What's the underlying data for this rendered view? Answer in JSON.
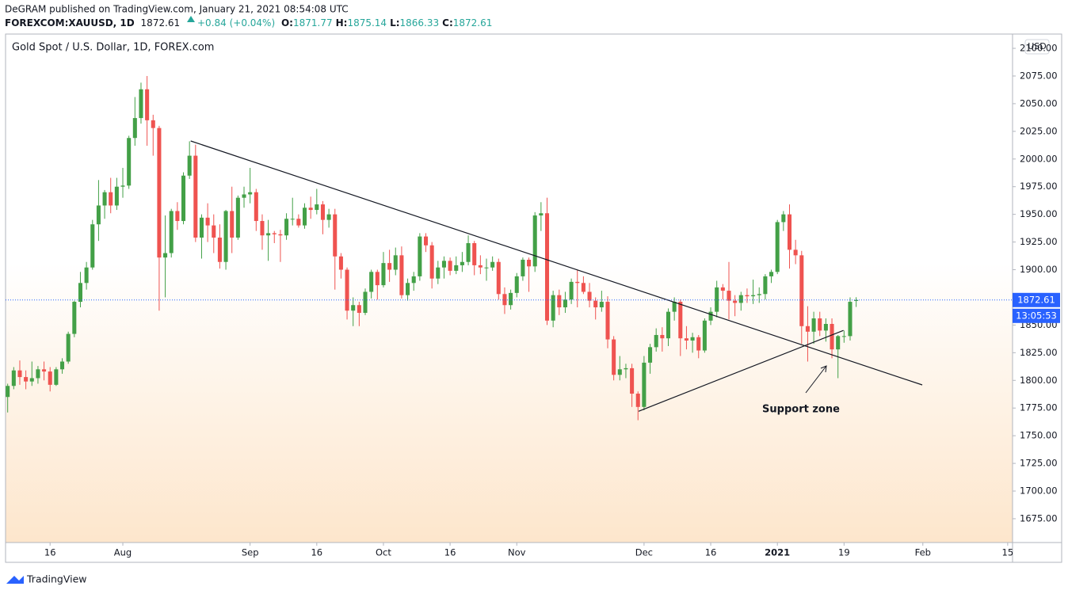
{
  "header": {
    "publisher": "DeGRAM published on TradingView.com, January 21, 2021 08:54:08 UTC",
    "symbol": "FOREXCOM:XAUUSD, 1D",
    "price": "1872.61",
    "change": "+0.84 (+0.04%)",
    "ohlc": [
      {
        "label": "O:",
        "value": "1871.77"
      },
      {
        "label": "H:",
        "value": "1875.14"
      },
      {
        "label": "L:",
        "value": "1866.33"
      },
      {
        "label": "C:",
        "value": "1872.61"
      }
    ]
  },
  "footer": {
    "brand": "TradingView"
  },
  "chart_data": {
    "type": "candlestick",
    "legend": "Gold Spot / U.S. Dollar, 1D, FOREX.com",
    "currency": "USD",
    "up_color": "#43a047",
    "down_color": "#ef5350",
    "grid": false,
    "open": [
      1785,
      1795,
      1809,
      1803,
      1799,
      1802,
      1810,
      1808,
      1796,
      1810,
      1817,
      1842,
      1871,
      1888,
      1902,
      1941,
      1958,
      1970,
      1958,
      1975,
      1976,
      2019,
      2037,
      2063,
      2035,
      2028,
      1911,
      1915,
      1953,
      1944,
      1985,
      2003,
      1929,
      1947,
      1940,
      1929,
      1907,
      1953,
      1929,
      1965,
      1968,
      1970,
      1944,
      1931,
      1933,
      1932,
      1931,
      1946,
      1946,
      1940,
      1956,
      1954,
      1959,
      1945,
      1950,
      1912,
      1900,
      1863,
      1868,
      1861,
      1880,
      1898,
      1886,
      1906,
      1900,
      1913,
      1877,
      1888,
      1894,
      1930,
      1922,
      1892,
      1902,
      1908,
      1899,
      1904,
      1907,
      1924,
      1904,
      1902,
      1902,
      1907,
      1878,
      1868,
      1879,
      1894,
      1909,
      1903,
      1949,
      1951,
      1854,
      1877,
      1866,
      1873,
      1889,
      1888,
      1880,
      1872,
      1866,
      1871,
      1837,
      1805,
      1810,
      1811,
      1788,
      1776,
      1816,
      1830,
      1841,
      1838,
      1862,
      1871,
      1838,
      1836,
      1839,
      1827,
      1854,
      1862,
      1884,
      1881,
      1872,
      1870,
      1877,
      1876,
      1877,
      1878,
      1894,
      1898,
      1943,
      1950,
      1918,
      1913,
      1849,
      1844,
      1856,
      1845,
      1851,
      1828,
      1840,
      1840,
      1871.77
    ],
    "high": [
      1797,
      1812,
      1818,
      1809,
      1817,
      1813,
      1817,
      1812,
      1812,
      1820,
      1844,
      1872,
      1898,
      1907,
      1945,
      1981,
      1972,
      1983,
      1983,
      1992,
      2021,
      2056,
      2069,
      2075,
      2040,
      2030,
      1949,
      1955,
      1961,
      1988,
      2016,
      2013,
      1950,
      1960,
      1950,
      1941,
      1954,
      1975,
      1967,
      1975,
      1992,
      1973,
      1950,
      1945,
      1935,
      1936,
      1951,
      1965,
      1950,
      1960,
      1966,
      1973,
      1962,
      1955,
      1955,
      1915,
      1902,
      1875,
      1871,
      1883,
      1900,
      1900,
      1916,
      1918,
      1920,
      1921,
      1892,
      1898,
      1933,
      1933,
      1925,
      1908,
      1912,
      1911,
      1912,
      1916,
      1931,
      1926,
      1913,
      1910,
      1912,
      1910,
      1884,
      1882,
      1897,
      1911,
      1911,
      1952,
      1961,
      1965,
      1881,
      1882,
      1880,
      1892,
      1900,
      1894,
      1888,
      1875,
      1881,
      1876,
      1840,
      1822,
      1815,
      1815,
      1790,
      1822,
      1833,
      1847,
      1848,
      1865,
      1875,
      1873,
      1849,
      1843,
      1841,
      1856,
      1866,
      1890,
      1887,
      1907,
      1877,
      1880,
      1883,
      1891,
      1884,
      1896,
      1900,
      1945,
      1953,
      1959,
      1927,
      1917,
      1867,
      1862,
      1862,
      1856,
      1856,
      1841,
      1845,
      1875,
      1875.14
    ],
    "low": [
      1771,
      1792,
      1796,
      1792,
      1795,
      1797,
      1800,
      1790,
      1795,
      1806,
      1815,
      1839,
      1866,
      1882,
      1900,
      1926,
      1946,
      1951,
      1954,
      1965,
      1973,
      2012,
      2032,
      2012,
      2003,
      1863,
      1875,
      1911,
      1936,
      1941,
      1982,
      1925,
      1910,
      1925,
      1915,
      1901,
      1900,
      1915,
      1927,
      1956,
      1960,
      1935,
      1918,
      1908,
      1924,
      1907,
      1927,
      1940,
      1938,
      1937,
      1946,
      1950,
      1932,
      1938,
      1882,
      1892,
      1855,
      1849,
      1849,
      1859,
      1874,
      1873,
      1884,
      1889,
      1895,
      1874,
      1872,
      1881,
      1890,
      1916,
      1883,
      1887,
      1892,
      1895,
      1896,
      1898,
      1904,
      1895,
      1896,
      1890,
      1899,
      1873,
      1860,
      1864,
      1875,
      1890,
      1880,
      1898,
      1935,
      1850,
      1848,
      1859,
      1861,
      1869,
      1866,
      1878,
      1866,
      1855,
      1862,
      1829,
      1800,
      1800,
      1802,
      1776,
      1764,
      1773,
      1806,
      1826,
      1826,
      1831,
      1854,
      1822,
      1828,
      1825,
      1820,
      1825,
      1850,
      1857,
      1873,
      1855,
      1858,
      1863,
      1870,
      1869,
      1870,
      1873,
      1888,
      1896,
      1935,
      1901,
      1905,
      1833,
      1817,
      1833,
      1840,
      1835,
      1820,
      1802,
      1834,
      1836,
      1866.33
    ],
    "close": [
      1795,
      1809,
      1803,
      1799,
      1802,
      1810,
      1808,
      1796,
      1810,
      1817,
      1842,
      1871,
      1888,
      1902,
      1941,
      1958,
      1970,
      1958,
      1975,
      1976,
      2019,
      2037,
      2063,
      2035,
      2028,
      1911,
      1915,
      1953,
      1944,
      1985,
      2003,
      1929,
      1947,
      1940,
      1929,
      1907,
      1953,
      1929,
      1965,
      1968,
      1970,
      1944,
      1931,
      1933,
      1932,
      1931,
      1946,
      1946,
      1940,
      1956,
      1954,
      1959,
      1945,
      1950,
      1912,
      1900,
      1863,
      1868,
      1861,
      1880,
      1898,
      1886,
      1906,
      1900,
      1913,
      1877,
      1888,
      1894,
      1930,
      1922,
      1892,
      1902,
      1908,
      1899,
      1904,
      1907,
      1924,
      1904,
      1902,
      1902,
      1907,
      1878,
      1868,
      1879,
      1894,
      1909,
      1903,
      1949,
      1951,
      1854,
      1877,
      1866,
      1873,
      1889,
      1888,
      1880,
      1872,
      1866,
      1871,
      1837,
      1805,
      1810,
      1811,
      1788,
      1776,
      1816,
      1830,
      1841,
      1838,
      1862,
      1871,
      1838,
      1836,
      1839,
      1827,
      1854,
      1862,
      1884,
      1881,
      1872,
      1870,
      1877,
      1876,
      1877,
      1878,
      1894,
      1898,
      1943,
      1950,
      1918,
      1913,
      1849,
      1844,
      1856,
      1845,
      1851,
      1828,
      1840,
      1840,
      1871,
      1872.61
    ],
    "last_price": {
      "value": 1872.61,
      "label": "1872.61",
      "countdown": "13:05:53",
      "color": "#2962ff"
    },
    "xlim": [
      -0.35,
      165.8
    ],
    "xticks": [
      {
        "value": 7,
        "label": "16"
      },
      {
        "value": 19,
        "label": "Aug"
      },
      {
        "value": 40,
        "label": "Sep"
      },
      {
        "value": 51,
        "label": "16"
      },
      {
        "value": 62,
        "label": "Oct"
      },
      {
        "value": 73,
        "label": "16"
      },
      {
        "value": 84,
        "label": "Nov"
      },
      {
        "value": 105,
        "label": "Dec"
      },
      {
        "value": 116,
        "label": "16"
      },
      {
        "value": 127,
        "label": "2021",
        "bold": true
      },
      {
        "value": 138,
        "label": "19"
      },
      {
        "value": 151,
        "label": "Feb"
      },
      {
        "value": 165,
        "label": "15"
      }
    ],
    "ylim": [
      1653.5,
      2112.9
    ],
    "yticks": [
      {
        "value": 1675,
        "label": "1675.00"
      },
      {
        "value": 1700,
        "label": "1700.00"
      },
      {
        "value": 1725,
        "label": "1725.00"
      },
      {
        "value": 1750,
        "label": "1750.00"
      },
      {
        "value": 1775,
        "label": "1775.00"
      },
      {
        "value": 1800,
        "label": "1800.00"
      },
      {
        "value": 1825,
        "label": "1825.00"
      },
      {
        "value": 1850,
        "label": "1850.00"
      },
      {
        "value": 1875,
        "label": "1875.00"
      },
      {
        "value": 1900,
        "label": "1900.00"
      },
      {
        "value": 1925,
        "label": "1925.00"
      },
      {
        "value": 1950,
        "label": "1950.00"
      },
      {
        "value": 1975,
        "label": "1975.00"
      },
      {
        "value": 2000,
        "label": "2000.00"
      },
      {
        "value": 2025,
        "label": "2025.00"
      },
      {
        "value": 2050,
        "label": "2050.00"
      },
      {
        "value": 2075,
        "label": "2075.00"
      },
      {
        "value": 2100,
        "label": "2100.00"
      }
    ],
    "trendlines": [
      {
        "x": [
          30.2,
          150.9
        ],
        "y": [
          2016.3,
          1795.9
        ]
      },
      {
        "x": [
          104.1,
          137.9
        ],
        "y": [
          1772.1,
          1845.1
        ]
      }
    ],
    "annotation": "Support zone"
  }
}
